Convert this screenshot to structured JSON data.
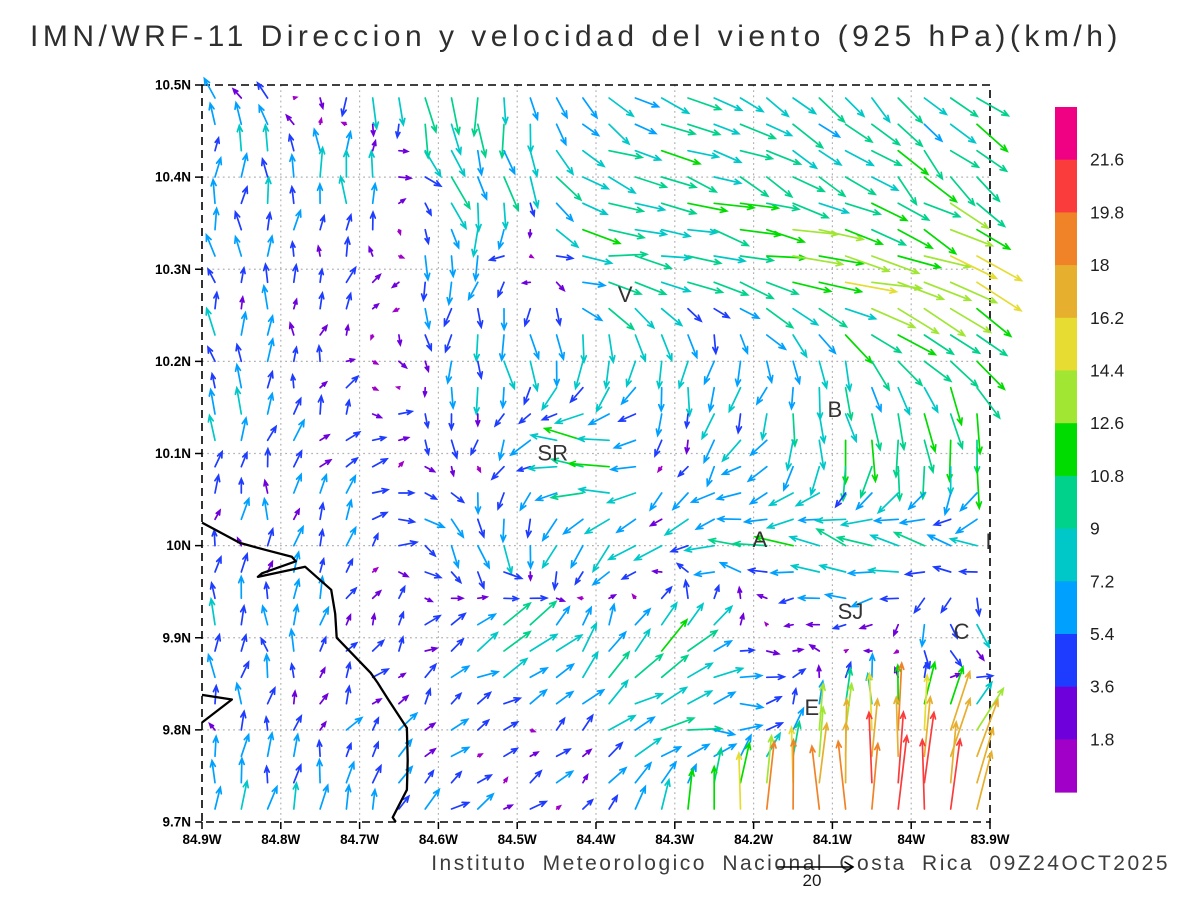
{
  "title": "IMN/WRF-11 Direccion y velocidad del viento (925 hPa)(km/h)",
  "caption": "Instituto Meteorologico Nacional Costa Rica 09Z24OCT2025",
  "ref_vector": {
    "label": "20",
    "value_kmh": 20
  },
  "axes": {
    "lat_ticks": [
      "10.5N",
      "10.4N",
      "10.3N",
      "10.2N",
      "10.1N",
      "10N",
      "9.9N",
      "9.8N",
      "9.7N"
    ],
    "lon_ticks": [
      "84.9W",
      "84.8W",
      "84.7W",
      "84.6W",
      "84.5W",
      "84.4W",
      "84.3W",
      "84.2W",
      "84.1W",
      "84W",
      "83.9W"
    ],
    "lat_range": [
      9.7,
      10.5
    ],
    "lon_range": [
      -84.9,
      -83.9
    ],
    "grid": "dotted 0.1 degree graticule"
  },
  "colorbar": {
    "labels_top_to_bottom": [
      "21.6",
      "19.8",
      "18",
      "16.2",
      "14.4",
      "12.6",
      "10.8",
      "9",
      "7.2",
      "5.4",
      "3.6",
      "1.8"
    ],
    "colors_top_to_bottom": [
      "#F00082",
      "#FA3C3C",
      "#F08228",
      "#E6AF2D",
      "#E6DC32",
      "#A0E632",
      "#00DC00",
      "#00D28C",
      "#00C8C8",
      "#00A0FF",
      "#1E3CFF",
      "#6E00DC",
      "#A000C8"
    ]
  },
  "stations": [
    {
      "label": "V",
      "lon": -84.363,
      "lat": 10.272
    },
    {
      "label": "SR",
      "lon": -84.455,
      "lat": 10.1
    },
    {
      "label": "B",
      "lon": -84.097,
      "lat": 10.147
    },
    {
      "label": "A",
      "lon": -84.192,
      "lat": 10.006
    },
    {
      "label": "SJ",
      "lon": -84.077,
      "lat": 9.928
    },
    {
      "label": "C",
      "lon": -83.936,
      "lat": 9.906
    },
    {
      "label": "E",
      "lon": -84.126,
      "lat": 9.824
    },
    {
      "label": "I",
      "lon": -83.902,
      "lat": 10.004
    }
  ],
  "coastline": [
    [
      [
        -84.9,
        10.025
      ],
      [
        -84.852,
        10.003
      ],
      [
        -84.818,
        9.995
      ],
      [
        -84.786,
        9.988
      ],
      [
        -84.781,
        9.983
      ],
      [
        -84.824,
        9.97
      ],
      [
        -84.829,
        9.966
      ],
      [
        -84.769,
        9.977
      ],
      [
        -84.736,
        9.952
      ],
      [
        -84.731,
        9.926
      ],
      [
        -84.729,
        9.9
      ],
      [
        -84.703,
        9.877
      ],
      [
        -84.686,
        9.862
      ],
      [
        -84.677,
        9.851
      ],
      [
        -84.663,
        9.832
      ],
      [
        -84.64,
        9.802
      ],
      [
        -84.639,
        9.767
      ],
      [
        -84.64,
        9.735
      ],
      [
        -84.658,
        9.705
      ],
      [
        -84.654,
        9.7
      ]
    ],
    [
      [
        -84.9,
        9.838
      ],
      [
        -84.862,
        9.833
      ],
      [
        -84.9,
        9.808
      ]
    ]
  ],
  "chart_data": {
    "type": "quiver-vector-field",
    "units": "km/h",
    "title": "IMN/WRF-11 Direccion y velocidad del viento (925 hPa)(km/h)",
    "speed_levels_kmh": [
      1.8,
      3.6,
      5.4,
      7.2,
      9,
      10.8,
      12.6,
      14.4,
      16.2,
      18,
      19.8,
      21.6
    ],
    "lon": [
      -84.9,
      -84.8,
      -84.7,
      -84.6,
      -84.5,
      -84.4,
      -84.3,
      -84.2,
      -84.1,
      -84.0,
      -83.9
    ],
    "lat": [
      10.5,
      10.4,
      10.3,
      10.2,
      10.1,
      10.0,
      9.9,
      9.8,
      9.7
    ],
    "u": [
      [
        -4,
        -1,
        1,
        1,
        0,
        5,
        8,
        7,
        7,
        6,
        7
      ],
      [
        1,
        0,
        0,
        4,
        2,
        9,
        10,
        9,
        8,
        7,
        8
      ],
      [
        -2,
        0,
        1,
        -1,
        -4,
        12,
        9,
        12,
        15,
        14,
        11
      ],
      [
        0,
        0,
        2,
        0,
        2,
        -2,
        -2,
        0,
        2,
        8,
        6
      ],
      [
        0,
        1,
        2,
        3,
        -4,
        -13,
        0,
        -5,
        0,
        0,
        0
      ],
      [
        0,
        1,
        3,
        4,
        1,
        -6,
        -6,
        -8,
        -10,
        -9,
        -7
      ],
      [
        0,
        0,
        2,
        2,
        8,
        4,
        7,
        3,
        -2,
        0,
        4
      ],
      [
        0,
        1,
        3,
        4,
        2,
        5,
        9,
        6,
        1,
        1,
        8
      ],
      [
        0,
        1,
        0,
        3,
        3,
        2,
        1,
        0,
        -1,
        1,
        2
      ]
    ],
    "v": [
      [
        4,
        3,
        -10,
        -11,
        -9,
        -4,
        -4,
        -5,
        -6,
        -6,
        -7
      ],
      [
        6,
        7,
        10,
        -7,
        -8,
        -3,
        -3,
        -4,
        -5,
        -6,
        -7
      ],
      [
        5,
        5,
        2,
        -8,
        -1,
        -1,
        -2,
        -2,
        -2,
        -4,
        -8
      ],
      [
        6,
        5,
        2,
        -6,
        -7,
        -10,
        -7,
        -6,
        -8,
        -7,
        -8
      ],
      [
        6,
        5,
        2,
        -3,
        -3,
        6,
        -5,
        -4,
        -11,
        -11,
        -12
      ],
      [
        3,
        5,
        4,
        -4,
        -7,
        -7,
        -2,
        1,
        3,
        3,
        1
      ],
      [
        6,
        5,
        3,
        2,
        7,
        7,
        8,
        1,
        -2,
        -6,
        -7
      ],
      [
        3,
        5,
        3,
        3,
        0,
        5,
        1,
        0,
        14,
        18,
        12
      ],
      [
        7,
        7,
        8,
        4,
        3,
        2,
        10,
        20,
        20,
        21,
        16
      ]
    ]
  },
  "render_hints": {
    "arrow_scale": 3.5,
    "grid_cols": 30,
    "grid_rows": 28,
    "jitter_kmh": 4
  }
}
